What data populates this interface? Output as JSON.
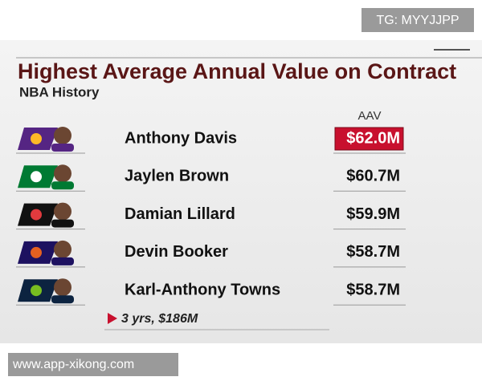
{
  "watermark_top": "TG: MYYJJPP",
  "header": {
    "title": "Highest Average Annual Value on Contract",
    "subtitle": "NBA History"
  },
  "table": {
    "columns": [
      "AAV"
    ],
    "rows": [
      [
        "Anthony Davis",
        "$62.0M"
      ],
      [
        "Jaylen Brown",
        "$60.7M"
      ],
      [
        "Damian Lillard",
        "$59.9M"
      ],
      [
        "Devin Booker",
        "$58.7M"
      ],
      [
        "Karl-Anthony Towns",
        "$58.7M"
      ]
    ]
  },
  "footnote": "3 yrs, $186M",
  "watermark_bottom": "www.app-xikong.com"
}
